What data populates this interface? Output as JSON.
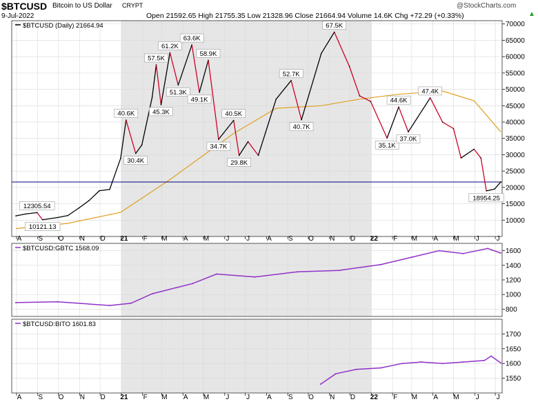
{
  "header": {
    "symbol": "$BTCUSD",
    "name": "Bitcoin to US Dollar",
    "exchange": "CRYPT",
    "date": "9-Jul-2022",
    "quote": "Open 21592.65  High 21755.35  Low 21328.96  Close 21664.94  Volume 14.6K  Chg +72.29 (+0.33%)",
    "watermark": "@StockCharts.com",
    "trend_icon": "green-up-triangle-icon"
  },
  "colors": {
    "price_up": "#000000",
    "price_down": "#cc0022",
    "ma": "#e0a020",
    "hline": "#000080",
    "ratio": "#9030c8",
    "shade": "#e6e6e6",
    "grid": "#d8d8d8"
  },
  "x_axis": {
    "ticks": [
      "A",
      "S",
      "O",
      "N",
      "D",
      "21",
      "F",
      "M",
      "A",
      "M",
      "J",
      "J",
      "A",
      "S",
      "O",
      "N",
      "D",
      "22",
      "F",
      "M",
      "A",
      "M",
      "J",
      "J"
    ],
    "bold": [
      "21",
      "22"
    ]
  },
  "chart_data": [
    {
      "type": "line",
      "label": "$BTCUSD (Daily) 21664.94",
      "y_axis": {
        "min": 5000,
        "max": 71000,
        "ticks": [
          10000,
          15000,
          20000,
          25000,
          30000,
          35000,
          40000,
          45000,
          50000,
          55000,
          60000,
          65000,
          70000
        ],
        "position": "right",
        "grid": true
      },
      "x": [
        "2020-07-31",
        "2020-08-15",
        "2020-08-31",
        "2020-09-08",
        "2020-09-30",
        "2020-10-15",
        "2020-10-31",
        "2020-11-15",
        "2020-11-30",
        "2020-12-15",
        "2020-12-31",
        "2021-01-08",
        "2021-01-22",
        "2021-01-31",
        "2021-02-15",
        "2021-02-21",
        "2021-02-28",
        "2021-03-13",
        "2021-03-25",
        "2021-04-14",
        "2021-04-25",
        "2021-05-08",
        "2021-05-23",
        "2021-06-14",
        "2021-06-22",
        "2021-07-05",
        "2021-07-20",
        "2021-08-15",
        "2021-09-06",
        "2021-09-21",
        "2021-10-20",
        "2021-11-08",
        "2021-11-30",
        "2021-12-15",
        "2021-12-31",
        "2022-01-24",
        "2022-02-10",
        "2022-02-24",
        "2022-03-28",
        "2022-04-15",
        "2022-05-01",
        "2022-05-12",
        "2022-05-31",
        "2022-06-10",
        "2022-06-18",
        "2022-06-30",
        "2022-07-09"
      ],
      "values": [
        11300,
        11900,
        12305.54,
        10121.13,
        10800,
        11400,
        13700,
        16000,
        19000,
        19400,
        28900,
        40600,
        30400,
        33000,
        47500,
        57500,
        45300,
        61200,
        51300,
        63600,
        49100,
        58900,
        34700,
        40500,
        29800,
        34000,
        29800,
        47000,
        52700,
        40700,
        61000,
        67500,
        57000,
        48000,
        46300,
        35100,
        44600,
        37000,
        47400,
        40000,
        38000,
        29000,
        31700,
        29000,
        18954.25,
        19500,
        21664.94
      ],
      "moving_average": {
        "x": [
          "2020-07-31",
          "2020-10-15",
          "2020-12-31",
          "2021-03-13",
          "2021-06-14",
          "2021-08-15",
          "2021-10-20",
          "2021-12-15",
          "2022-02-10",
          "2022-04-15",
          "2022-05-31",
          "2022-07-09"
        ],
        "values": [
          7400,
          9000,
          12400,
          22400,
          36500,
          44200,
          45000,
          47000,
          48500,
          49500,
          46500,
          37000
        ]
      },
      "horizontal_line": 21664.94,
      "annotations": [
        {
          "x": "2020-08-31",
          "y": 12305.54,
          "text": "12305.54",
          "pos": "above"
        },
        {
          "x": "2020-09-08",
          "y": 10121.13,
          "text": "10121.13",
          "pos": "below"
        },
        {
          "x": "2021-01-08",
          "y": 40600,
          "text": "40.6K",
          "pos": "above"
        },
        {
          "x": "2021-01-22",
          "y": 30400,
          "text": "30.4K",
          "pos": "below"
        },
        {
          "x": "2021-02-21",
          "y": 57500,
          "text": "57.5K",
          "pos": "above"
        },
        {
          "x": "2021-02-28",
          "y": 45300,
          "text": "45.3K",
          "pos": "below"
        },
        {
          "x": "2021-03-13",
          "y": 61200,
          "text": "61.2K",
          "pos": "above"
        },
        {
          "x": "2021-03-25",
          "y": 51300,
          "text": "51.3K",
          "pos": "below"
        },
        {
          "x": "2021-04-14",
          "y": 63600,
          "text": "63.6K",
          "pos": "above"
        },
        {
          "x": "2021-04-25",
          "y": 49100,
          "text": "49.1K",
          "pos": "below"
        },
        {
          "x": "2021-05-08",
          "y": 58900,
          "text": "58.9K",
          "pos": "above"
        },
        {
          "x": "2021-05-23",
          "y": 34700,
          "text": "34.7K",
          "pos": "below"
        },
        {
          "x": "2021-06-14",
          "y": 40500,
          "text": "40.5K",
          "pos": "above"
        },
        {
          "x": "2021-06-22",
          "y": 29800,
          "text": "29.8K",
          "pos": "below"
        },
        {
          "x": "2021-09-06",
          "y": 52700,
          "text": "52.7K",
          "pos": "above"
        },
        {
          "x": "2021-09-21",
          "y": 40700,
          "text": "40.7K",
          "pos": "below"
        },
        {
          "x": "2021-11-08",
          "y": 67500,
          "text": "67.5K",
          "pos": "above"
        },
        {
          "x": "2022-01-24",
          "y": 35100,
          "text": "35.1K",
          "pos": "below"
        },
        {
          "x": "2022-02-10",
          "y": 44600,
          "text": "44.6K",
          "pos": "above"
        },
        {
          "x": "2022-02-24",
          "y": 37000,
          "text": "37.0K",
          "pos": "below"
        },
        {
          "x": "2022-03-28",
          "y": 47400,
          "text": "47.4K",
          "pos": "above"
        },
        {
          "x": "2022-06-18",
          "y": 18954.25,
          "text": "18954.25",
          "pos": "below"
        }
      ]
    },
    {
      "type": "line",
      "label": "$BTCUSD:GBTC 1568.09",
      "y_axis": {
        "min": 700,
        "max": 1700,
        "ticks": [
          800,
          1000,
          1200,
          1400,
          1600
        ],
        "position": "right",
        "grid": true
      },
      "x": [
        "2020-07-31",
        "2020-09-30",
        "2020-12-15",
        "2021-01-15",
        "2021-02-15",
        "2021-04-15",
        "2021-05-20",
        "2021-07-15",
        "2021-09-15",
        "2021-11-15",
        "2022-01-15",
        "2022-03-01",
        "2022-04-10",
        "2022-05-15",
        "2022-06-20",
        "2022-07-09"
      ],
      "values": [
        890,
        900,
        850,
        880,
        1010,
        1150,
        1280,
        1240,
        1310,
        1330,
        1410,
        1510,
        1600,
        1560,
        1630,
        1568.09
      ]
    },
    {
      "type": "line",
      "label": "$BTCUSD:BITO 1601.83",
      "y_axis": {
        "min": 1500,
        "max": 1750,
        "ticks": [
          1550,
          1600,
          1650,
          1700
        ],
        "position": "right",
        "grid": true
      },
      "x": [
        "2021-10-19",
        "2021-11-10",
        "2021-12-10",
        "2022-01-15",
        "2022-02-15",
        "2022-03-15",
        "2022-04-15",
        "2022-05-15",
        "2022-06-15",
        "2022-06-25",
        "2022-07-09"
      ],
      "values": [
        1530,
        1565,
        1580,
        1585,
        1600,
        1605,
        1600,
        1605,
        1610,
        1625,
        1601.83
      ]
    }
  ]
}
